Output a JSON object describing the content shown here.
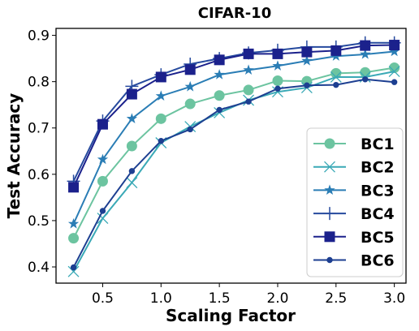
{
  "chart_data": {
    "type": "line",
    "title": "CIFAR-10",
    "xlabel": "Scaling Factor",
    "ylabel": "Test Accuracy",
    "xlim": [
      0.1,
      3.1
    ],
    "ylim": [
      0.365,
      0.915
    ],
    "xticks": [
      "0.5",
      "1.0",
      "1.5",
      "2.0",
      "2.5",
      "3.0"
    ],
    "yticks": [
      "0.4",
      "0.5",
      "0.6",
      "0.7",
      "0.8",
      "0.9"
    ],
    "grid": false,
    "legend_position": "lower-right",
    "x": [
      0.25,
      0.5,
      0.75,
      1.0,
      1.25,
      1.5,
      1.75,
      2.0,
      2.25,
      2.5,
      2.75,
      3.0
    ],
    "series": [
      {
        "name": "BC1",
        "color": "#6cc4a0",
        "marker": "circle",
        "values": [
          0.462,
          0.585,
          0.661,
          0.72,
          0.752,
          0.77,
          0.782,
          0.802,
          0.801,
          0.818,
          0.82,
          0.83
        ]
      },
      {
        "name": "BC2",
        "color": "#3aa9b6",
        "marker": "x",
        "values": [
          0.39,
          0.505,
          0.582,
          0.668,
          0.703,
          0.733,
          0.76,
          0.778,
          0.787,
          0.81,
          0.81,
          0.822
        ]
      },
      {
        "name": "BC3",
        "color": "#2a7db5",
        "marker": "star",
        "values": [
          0.493,
          0.632,
          0.72,
          0.769,
          0.789,
          0.815,
          0.825,
          0.834,
          0.845,
          0.855,
          0.859,
          0.865
        ]
      },
      {
        "name": "BC4",
        "color": "#264a9e",
        "marker": "plus",
        "values": [
          0.585,
          0.715,
          0.79,
          0.815,
          0.838,
          0.85,
          0.862,
          0.868,
          0.875,
          0.875,
          0.884,
          0.884
        ]
      },
      {
        "name": "BC5",
        "color": "#1b218c",
        "marker": "square",
        "values": [
          0.572,
          0.708,
          0.773,
          0.81,
          0.826,
          0.847,
          0.86,
          0.86,
          0.864,
          0.867,
          0.878,
          0.879
        ]
      },
      {
        "name": "BC6",
        "color": "#1d3f91",
        "marker": "dot",
        "values": [
          0.399,
          0.521,
          0.607,
          0.672,
          0.697,
          0.739,
          0.757,
          0.785,
          0.792,
          0.793,
          0.805,
          0.799
        ]
      }
    ]
  }
}
